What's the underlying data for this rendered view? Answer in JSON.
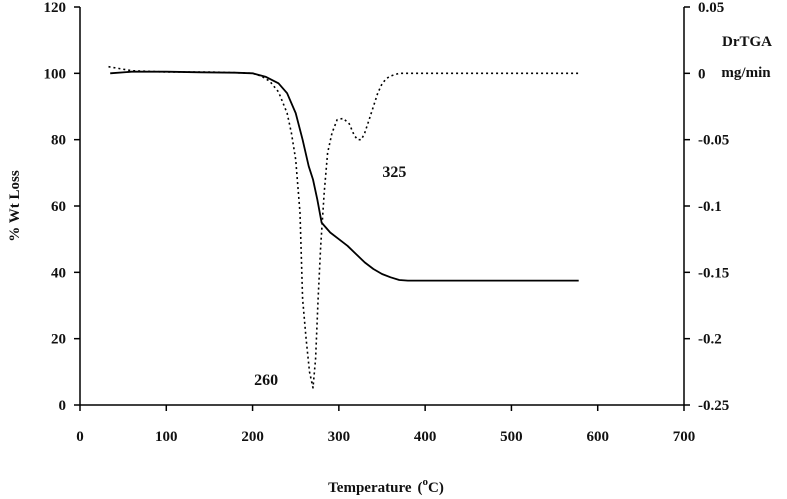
{
  "chart_data": {
    "type": "line",
    "title": "",
    "xlabel": "Temperature",
    "xlabel_unit_prefix": "(",
    "xlabel_unit_sup": "o",
    "xlabel_unit_suffix": "C)",
    "ylabel": "% Wt Loss",
    "y2label_line1": "DrTGA",
    "y2label_line2": "mg/min",
    "xlim": [
      0,
      700
    ],
    "ylim": [
      0,
      120
    ],
    "y2lim": [
      -0.25,
      0.05
    ],
    "x_ticks": [
      0,
      100,
      200,
      300,
      400,
      500,
      600,
      700
    ],
    "y_ticks": [
      0,
      20,
      40,
      60,
      80,
      100,
      120
    ],
    "y2_ticks": [
      -0.25,
      -0.2,
      -0.15,
      -0.1,
      -0.05,
      0,
      0.05
    ],
    "x_tick_labels": [
      "0",
      "100",
      "200",
      "300",
      "400",
      "500",
      "600",
      "700"
    ],
    "y_tick_labels": [
      "0",
      "20",
      "40",
      "60",
      "80",
      "100",
      "120"
    ],
    "y2_tick_labels": [
      "-0.25",
      "-0.2",
      "-0.15",
      "-0.1",
      "-0.05",
      "0",
      "0.05"
    ],
    "grid": false,
    "series": [
      {
        "axis": "left",
        "style": "solid",
        "color": "#000000",
        "x": [
          35,
          60,
          100,
          140,
          180,
          200,
          215,
          230,
          240,
          250,
          258,
          265,
          270,
          275,
          280,
          290,
          300,
          310,
          320,
          330,
          340,
          350,
          360,
          370,
          380,
          400,
          450,
          500,
          550,
          578
        ],
        "y": [
          100,
          100.5,
          100.5,
          100.3,
          100.2,
          100,
          99,
          97,
          94,
          88,
          80,
          72,
          68,
          62,
          55,
          52,
          50,
          48,
          45.5,
          43,
          41,
          39.5,
          38.5,
          37.7,
          37.5,
          37.5,
          37.5,
          37.5,
          37.5,
          37.5
        ]
      },
      {
        "axis": "right",
        "style": "dotted",
        "color": "#000000",
        "x": [
          33,
          60,
          100,
          150,
          180,
          200,
          210,
          220,
          230,
          240,
          245,
          250,
          255,
          258,
          262,
          266,
          270,
          273,
          276,
          279,
          283,
          287,
          292,
          298,
          305,
          312,
          318,
          322,
          326,
          330,
          335,
          340,
          345,
          350,
          355,
          360,
          365,
          370,
          380,
          400,
          450,
          500,
          550,
          578
        ],
        "y": [
          0.005,
          0.002,
          0.001,
          0.001,
          0.0005,
          0,
          -0.002,
          -0.006,
          -0.014,
          -0.03,
          -0.045,
          -0.065,
          -0.105,
          -0.17,
          -0.2,
          -0.225,
          -0.237,
          -0.215,
          -0.17,
          -0.13,
          -0.09,
          -0.06,
          -0.045,
          -0.035,
          -0.034,
          -0.038,
          -0.047,
          -0.05,
          -0.05,
          -0.045,
          -0.035,
          -0.025,
          -0.015,
          -0.008,
          -0.004,
          -0.002,
          -0.001,
          0,
          0,
          0,
          0,
          0,
          0,
          0
        ]
      }
    ],
    "annotations": [
      {
        "text": "325",
        "x": 325,
        "y": 70
      },
      {
        "text": "260",
        "x": 254,
        "y": 6.5
      }
    ]
  }
}
